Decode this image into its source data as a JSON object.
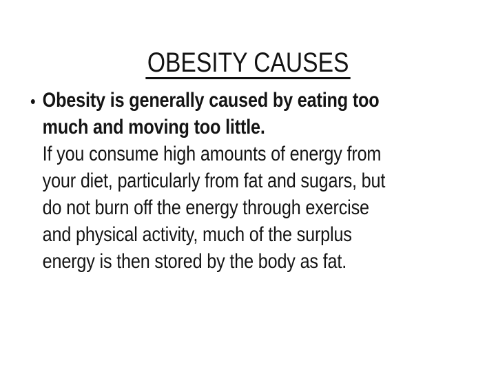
{
  "slide": {
    "title": "OBESITY CAUSES",
    "bullet_marker": "•",
    "body_lines": [
      {
        "text": "Obesity is generally caused by eating too",
        "bold": true
      },
      {
        "text": "much and moving too little.",
        "bold": true
      },
      {
        "text": "If you consume high amounts of energy from",
        "bold": false
      },
      {
        "text": "your diet, particularly from fat and sugars, but",
        "bold": false
      },
      {
        "text": "do not burn off the energy through exercise",
        "bold": false
      },
      {
        "text": "and physical activity, much of the surplus",
        "bold": false
      },
      {
        "text": "energy is then stored by the body as fat.",
        "bold": false
      }
    ]
  },
  "colors": {
    "background": "#ffffff",
    "text": "#141414",
    "title_underline": "#121212"
  }
}
